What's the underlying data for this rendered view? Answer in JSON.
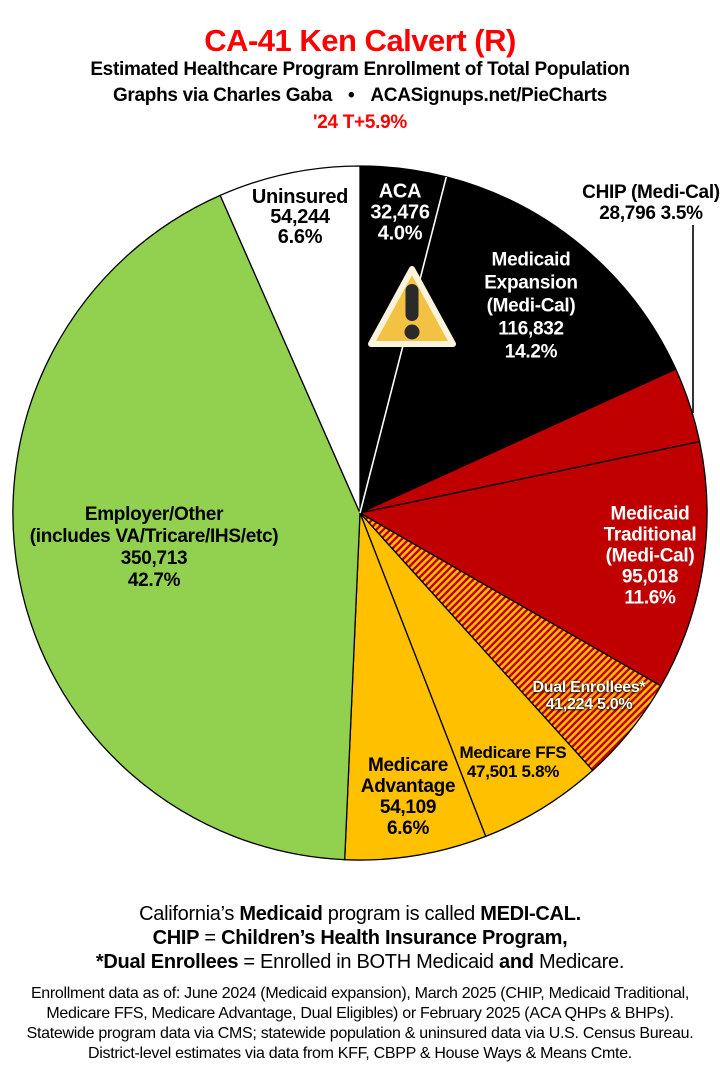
{
  "header": {
    "title": "CA-41 Ken Calvert (R)",
    "subtitle": "Estimated Healthcare Program Enrollment of Total Population",
    "credit_left": "Graphs via Charles Gaba",
    "credit_sep": "•",
    "credit_right": "ACASignups.net/PieCharts",
    "trend": "'24 T+5.9%",
    "title_color": "#ff0000",
    "trend_color": "#ff0000"
  },
  "chart_data": {
    "type": "pie",
    "direction": "clockwise",
    "start_angle_deg": 0,
    "legend_position": "labels-on-slices",
    "slices": [
      {
        "id": "aca",
        "name": "ACA",
        "value": 32476,
        "pct": 4.0,
        "fill": "#000000",
        "label_lines": [
          "ACA",
          "32,476",
          "4.0%"
        ]
      },
      {
        "id": "medicaid-expansion",
        "name": "Medicaid Expansion (Medi-Cal)",
        "value": 116832,
        "pct": 14.2,
        "fill": "#000000",
        "label_lines": [
          "Medicaid",
          "Expansion",
          "(Medi-Cal)",
          "116,832",
          "14.2%"
        ]
      },
      {
        "id": "chip",
        "name": "CHIP (Medi-Cal)",
        "value": 28796,
        "pct": 3.5,
        "fill": "#C00000",
        "label_lines": [
          "CHIP (Medi-Cal)",
          "28,796 3.5%"
        ]
      },
      {
        "id": "medicaid-traditional",
        "name": "Medicaid Traditional (Medi-Cal)",
        "value": 95018,
        "pct": 11.6,
        "fill": "#C00000",
        "label_lines": [
          "Medicaid",
          "Traditional",
          "(Medi-Cal)",
          "95,018",
          "11.6%"
        ]
      },
      {
        "id": "dual-enrollees",
        "name": "Dual Enrollees*",
        "value": 41224,
        "pct": 5.0,
        "fill": "hatch",
        "label_lines": [
          "Dual Enrollees*",
          "41,224 5.0%"
        ]
      },
      {
        "id": "medicare-ffs",
        "name": "Medicare FFS",
        "value": 47501,
        "pct": 5.8,
        "fill": "#FFC000",
        "label_lines": [
          "Medicare FFS",
          "47,501 5.8%"
        ]
      },
      {
        "id": "medicare-advantage",
        "name": "Medicare Advantage",
        "value": 54109,
        "pct": 6.6,
        "fill": "#FFC000",
        "label_lines": [
          "Medicare",
          "Advantage",
          "54,109",
          "6.6%"
        ]
      },
      {
        "id": "employer-other",
        "name": "Employer/Other (includes VA/Tricare/IHS/etc)",
        "value": 350713,
        "pct": 42.7,
        "fill": "#92D050",
        "label_lines": [
          "Employer/Other",
          "(includes VA/Tricare/IHS/etc)",
          "350,713",
          "42.7%"
        ]
      },
      {
        "id": "uninsured",
        "name": "Uninsured",
        "value": 54244,
        "pct": 6.6,
        "fill": "#FFFFFF",
        "label_lines": [
          "Uninsured",
          "54,244",
          "6.6%"
        ]
      }
    ],
    "hatch": {
      "bg": "#FFC000",
      "stripe": "#C00000"
    },
    "white_divider_between": [
      "ACA",
      "Medicaid Expansion (Medi-Cal)"
    ],
    "callout": {
      "slice": "CHIP (Medi-Cal)",
      "style": "vertical-line",
      "color": "#000000"
    },
    "warning_icon": {
      "fill": "#F4C242",
      "border": "#FBF3DC",
      "glyph": "#2A2A2A"
    }
  },
  "footnotes": [
    {
      "segments": [
        {
          "text": "California’s ",
          "bold": false
        },
        {
          "text": "Medicaid",
          "bold": true
        },
        {
          "text": " program is called ",
          "bold": false
        },
        {
          "text": "MEDI-CAL.",
          "bold": true
        }
      ]
    },
    {
      "segments": [
        {
          "text": "CHIP",
          "bold": true
        },
        {
          "text": " = ",
          "bold": false
        },
        {
          "text": "Children’s Health Insurance Program,",
          "bold": true
        }
      ]
    },
    {
      "segments": [
        {
          "text": "*Dual Enrollees",
          "bold": true
        },
        {
          "text": " = Enrolled in BOTH Medicaid ",
          "bold": false
        },
        {
          "text": "and",
          "bold": true
        },
        {
          "text": " Medicare.",
          "bold": false
        }
      ]
    }
  ],
  "sources": [
    "Enrollment data as of: June 2024 (Medicaid expansion), March 2025 (CHIP, Medicaid Traditional,",
    "Medicare FFS, Medicare Advantage, Dual Eligibles) or February 2025 (ACA QHPs & BHPs).",
    "Statewide program data via CMS; statewide population & uninsured data via U.S. Census Bureau.",
    "District-level estimates via data from KFF, CBPP & House Ways & Means Cmte."
  ]
}
